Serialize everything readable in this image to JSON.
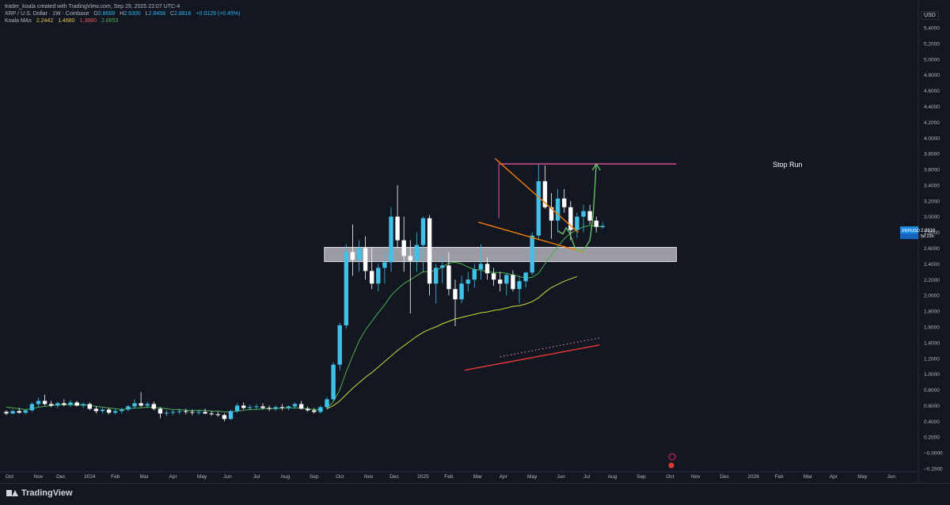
{
  "header": {
    "attribution": "trader_koala created with TradingView.com, Sep 29, 2025 22:07 UTC-4",
    "symbol": "XRP / U.S. Dollar · 1W · Coinbase",
    "ohlc": {
      "o_label": "O",
      "o": "2.8669",
      "h_label": "H",
      "h": "2.9300",
      "l_label": "L",
      "l": "2.8458",
      "c_label": "C",
      "c": "2.8816",
      "change": "+0.0129 (+0.45%)"
    },
    "indicator": {
      "name": "Koala MAs",
      "v1": "2.2442",
      "v2": "1.4680",
      "v3": "1.3880",
      "v4": "2.8653"
    }
  },
  "price_scale": {
    "currency": "USD",
    "ticks": [
      "5.4000",
      "5.2000",
      "5.0000",
      "4.8000",
      "4.6000",
      "4.4000",
      "4.2000",
      "4.0000",
      "3.8000",
      "3.6000",
      "3.4000",
      "3.2000",
      "3.0000",
      "2.8000",
      "2.6000",
      "2.4000",
      "2.2000",
      "2.0000",
      "1.8000",
      "1.6000",
      "1.4000",
      "1.2000",
      "1.0000",
      "0.8000",
      "0.6000",
      "0.4000",
      "0.2000",
      "−0.0000",
      "−0.2000"
    ],
    "current_tag": {
      "symbol": "XRPUSD",
      "price": "2.8816",
      "countdown": "5d 22h"
    }
  },
  "time_axis": {
    "labels": [
      "Oct",
      "Nov",
      "Dec",
      "2024",
      "Feb",
      "Mar",
      "Apr",
      "May",
      "Jun",
      "Jul",
      "Aug",
      "Sep",
      "Oct",
      "Nov",
      "Dec",
      "2025",
      "Feb",
      "Mar",
      "Apr",
      "May",
      "Jun",
      "Jul",
      "Aug",
      "Sep",
      "Oct",
      "Nov",
      "Dec",
      "2026",
      "Feb",
      "Mar",
      "Apr",
      "May",
      "Jun"
    ]
  },
  "annotations": {
    "stop_run_label": "Stop Run"
  },
  "colors": {
    "background": "#131722",
    "candle_up": "#3fc1e8",
    "candle_down": "#ffffff",
    "ma_fast": "#4caf50",
    "ma_slow": "#cddc39",
    "ma_red": "#e53935",
    "trendline": "#f57c00",
    "stop_run": "#e0559a",
    "arrow": "#66bb6a",
    "zone": "#c8c8d0"
  },
  "chart_data": {
    "type": "candlestick",
    "title": "XRP / U.S. Dollar · 1W · Coinbase",
    "ylim": [
      -0.22,
      5.58
    ],
    "x_start": "2023-09-25",
    "week_step_days": 7,
    "candles": [
      [
        0.52,
        0.54,
        0.48,
        0.5
      ],
      [
        0.5,
        0.55,
        0.49,
        0.53
      ],
      [
        0.53,
        0.57,
        0.5,
        0.51
      ],
      [
        0.51,
        0.55,
        0.49,
        0.54
      ],
      [
        0.54,
        0.64,
        0.52,
        0.62
      ],
      [
        0.62,
        0.7,
        0.58,
        0.66
      ],
      [
        0.66,
        0.74,
        0.6,
        0.62
      ],
      [
        0.62,
        0.66,
        0.58,
        0.6
      ],
      [
        0.6,
        0.65,
        0.57,
        0.63
      ],
      [
        0.63,
        0.68,
        0.59,
        0.61
      ],
      [
        0.61,
        0.67,
        0.58,
        0.64
      ],
      [
        0.64,
        0.66,
        0.59,
        0.6
      ],
      [
        0.6,
        0.64,
        0.57,
        0.62
      ],
      [
        0.62,
        0.64,
        0.54,
        0.56
      ],
      [
        0.56,
        0.59,
        0.5,
        0.53
      ],
      [
        0.53,
        0.57,
        0.5,
        0.55
      ],
      [
        0.55,
        0.57,
        0.49,
        0.51
      ],
      [
        0.51,
        0.56,
        0.49,
        0.53
      ],
      [
        0.53,
        0.57,
        0.5,
        0.55
      ],
      [
        0.55,
        0.61,
        0.53,
        0.59
      ],
      [
        0.59,
        0.68,
        0.56,
        0.63
      ],
      [
        0.63,
        0.77,
        0.58,
        0.6
      ],
      [
        0.6,
        0.65,
        0.57,
        0.62
      ],
      [
        0.62,
        0.65,
        0.54,
        0.56
      ],
      [
        0.56,
        0.58,
        0.44,
        0.5
      ],
      [
        0.5,
        0.54,
        0.47,
        0.51
      ],
      [
        0.51,
        0.55,
        0.48,
        0.52
      ],
      [
        0.52,
        0.56,
        0.49,
        0.53
      ],
      [
        0.53,
        0.56,
        0.49,
        0.52
      ],
      [
        0.52,
        0.55,
        0.48,
        0.51
      ],
      [
        0.51,
        0.55,
        0.48,
        0.52
      ],
      [
        0.52,
        0.56,
        0.49,
        0.5
      ],
      [
        0.5,
        0.53,
        0.47,
        0.49
      ],
      [
        0.49,
        0.52,
        0.46,
        0.48
      ],
      [
        0.48,
        0.5,
        0.4,
        0.43
      ],
      [
        0.43,
        0.55,
        0.42,
        0.53
      ],
      [
        0.53,
        0.63,
        0.51,
        0.6
      ],
      [
        0.6,
        0.64,
        0.55,
        0.57
      ],
      [
        0.57,
        0.61,
        0.54,
        0.58
      ],
      [
        0.58,
        0.62,
        0.55,
        0.59
      ],
      [
        0.59,
        0.63,
        0.55,
        0.57
      ],
      [
        0.57,
        0.6,
        0.53,
        0.56
      ],
      [
        0.56,
        0.6,
        0.53,
        0.58
      ],
      [
        0.58,
        0.62,
        0.54,
        0.57
      ],
      [
        0.57,
        0.6,
        0.54,
        0.59
      ],
      [
        0.59,
        0.64,
        0.56,
        0.62
      ],
      [
        0.62,
        0.66,
        0.55,
        0.56
      ],
      [
        0.56,
        0.59,
        0.52,
        0.54
      ],
      [
        0.54,
        0.57,
        0.5,
        0.52
      ],
      [
        0.52,
        0.6,
        0.5,
        0.58
      ],
      [
        0.58,
        0.71,
        0.55,
        0.68
      ],
      [
        0.68,
        1.15,
        0.66,
        1.12
      ],
      [
        1.12,
        1.65,
        1.05,
        1.62
      ],
      [
        1.62,
        2.65,
        1.58,
        2.55
      ],
      [
        2.55,
        2.9,
        2.25,
        2.45
      ],
      [
        2.45,
        2.7,
        2.3,
        2.6
      ],
      [
        2.6,
        2.75,
        2.2,
        2.31
      ],
      [
        2.31,
        2.6,
        2.08,
        2.15
      ],
      [
        2.15,
        2.4,
        2.05,
        2.35
      ],
      [
        2.35,
        2.55,
        2.15,
        2.42
      ],
      [
        2.42,
        3.12,
        2.3,
        3.0
      ],
      [
        3.0,
        3.4,
        2.6,
        2.7
      ],
      [
        2.7,
        3.0,
        2.3,
        2.5
      ],
      [
        2.5,
        2.7,
        1.77,
        2.44
      ],
      [
        2.44,
        2.8,
        2.3,
        2.64
      ],
      [
        2.64,
        3.0,
        2.3,
        2.98
      ],
      [
        2.98,
        3.02,
        2.0,
        2.15
      ],
      [
        2.15,
        2.4,
        1.9,
        2.35
      ],
      [
        2.35,
        2.5,
        2.15,
        2.38
      ],
      [
        2.38,
        2.55,
        2.0,
        2.08
      ],
      [
        2.08,
        2.2,
        1.61,
        1.95
      ],
      [
        1.95,
        2.25,
        1.9,
        2.15
      ],
      [
        2.15,
        2.3,
        2.05,
        2.2
      ],
      [
        2.2,
        2.4,
        2.1,
        2.33
      ],
      [
        2.33,
        2.65,
        2.2,
        2.4
      ],
      [
        2.4,
        2.48,
        2.2,
        2.28
      ],
      [
        2.28,
        2.35,
        2.12,
        2.2
      ],
      [
        2.2,
        2.3,
        2.05,
        2.15
      ],
      [
        2.15,
        2.28,
        2.0,
        2.26
      ],
      [
        2.26,
        2.32,
        2.05,
        2.08
      ],
      [
        2.08,
        2.25,
        1.9,
        2.18
      ],
      [
        2.18,
        2.3,
        2.1,
        2.29
      ],
      [
        2.29,
        2.8,
        2.26,
        2.76
      ],
      [
        2.76,
        3.66,
        2.7,
        3.45
      ],
      [
        3.45,
        3.65,
        3.1,
        3.12
      ],
      [
        3.12,
        3.3,
        2.72,
        2.95
      ],
      [
        2.95,
        3.35,
        2.8,
        3.23
      ],
      [
        3.23,
        3.35,
        3.05,
        3.12
      ],
      [
        3.12,
        3.2,
        2.7,
        2.83
      ],
      [
        2.83,
        3.05,
        2.73,
        3.0
      ],
      [
        3.0,
        3.15,
        2.8,
        3.07
      ],
      [
        3.07,
        3.15,
        2.9,
        2.95
      ],
      [
        2.95,
        3.0,
        2.8,
        2.87
      ],
      [
        2.8669,
        2.93,
        2.8458,
        2.8816
      ]
    ],
    "ma_fast": {
      "start_index": 50,
      "values": [
        0.57,
        0.65,
        0.8,
        1.03,
        1.23,
        1.42,
        1.56,
        1.67,
        1.78,
        1.88,
        2.0,
        2.08,
        2.15,
        2.2,
        2.25,
        2.3,
        2.3,
        2.32,
        2.36,
        2.41,
        2.42,
        2.4,
        2.36,
        2.33,
        2.32,
        2.3,
        2.29,
        2.29,
        2.28,
        2.26,
        2.24,
        2.22,
        2.23,
        2.28,
        2.4,
        2.52,
        2.62,
        2.72,
        2.79,
        2.83,
        2.87,
        2.89,
        2.88,
        2.87
      ]
    },
    "ma_slow": {
      "start_index": 50,
      "values": [
        0.56,
        0.6,
        0.66,
        0.74,
        0.82,
        0.89,
        0.96,
        1.02,
        1.09,
        1.16,
        1.23,
        1.3,
        1.36,
        1.42,
        1.48,
        1.53,
        1.57,
        1.6,
        1.64,
        1.67,
        1.7,
        1.72,
        1.74,
        1.76,
        1.78,
        1.79,
        1.81,
        1.82,
        1.84,
        1.86,
        1.87,
        1.89,
        1.92,
        1.97,
        2.04,
        2.1,
        2.14,
        2.18,
        2.21,
        2.24
      ]
    },
    "ma_red": {
      "x_weeks": [
        71.5,
        92.5
      ],
      "values": [
        1.05,
        1.37
      ]
    },
    "ma_red_dotted": {
      "x_weeks": [
        77,
        92.5
      ],
      "values": [
        1.22,
        1.46
      ]
    },
    "pre_ma_green": {
      "start_index": 0,
      "values": [
        0.58,
        0.57,
        0.56,
        0.55,
        0.56,
        0.58,
        0.59,
        0.6,
        0.61,
        0.61,
        0.61,
        0.61,
        0.61,
        0.6,
        0.59,
        0.58,
        0.57,
        0.56,
        0.55,
        0.56,
        0.57,
        0.57,
        0.58,
        0.58,
        0.57,
        0.56,
        0.55,
        0.55,
        0.54,
        0.54,
        0.54,
        0.54,
        0.53,
        0.53,
        0.52,
        0.52,
        0.53,
        0.54,
        0.55,
        0.55,
        0.56,
        0.56,
        0.56,
        0.57,
        0.57,
        0.57,
        0.57,
        0.56,
        0.55,
        0.55
      ]
    },
    "zone": {
      "x_weeks": [
        49.6,
        104.5
      ],
      "y_range": [
        2.43,
        2.61
      ]
    },
    "stop_run_line": {
      "x_weeks": [
        76.8,
        104.5
      ],
      "y": 3.67
    },
    "trend_upper": {
      "x_weeks": [
        76.2,
        89.2
      ],
      "values": [
        3.74,
        2.8
      ]
    },
    "trend_lower": {
      "x_weeks": [
        73.6,
        90.0
      ],
      "values": [
        2.93,
        2.55
      ]
    },
    "arrow_path": {
      "x_weeks": [
        86.0,
        86.8,
        87.3,
        87.8,
        88.6,
        89.2,
        90.1,
        91.0,
        91.5,
        91.8,
        92.0
      ],
      "values": [
        2.82,
        2.78,
        2.86,
        2.8,
        2.62,
        2.56,
        2.58,
        2.7,
        3.0,
        3.4,
        3.67
      ]
    },
    "time_label_weeks": [
      0.5,
      5,
      8.5,
      13,
      17,
      21.5,
      26,
      30.5,
      34.5,
      39,
      43.5,
      48,
      52,
      56.5,
      60.5,
      65,
      69,
      73.5,
      77.5,
      82,
      86.5,
      90.5,
      94.5,
      99,
      103.5,
      107.5,
      112,
      116.5,
      120.5,
      125,
      129,
      133.5,
      138
    ]
  }
}
